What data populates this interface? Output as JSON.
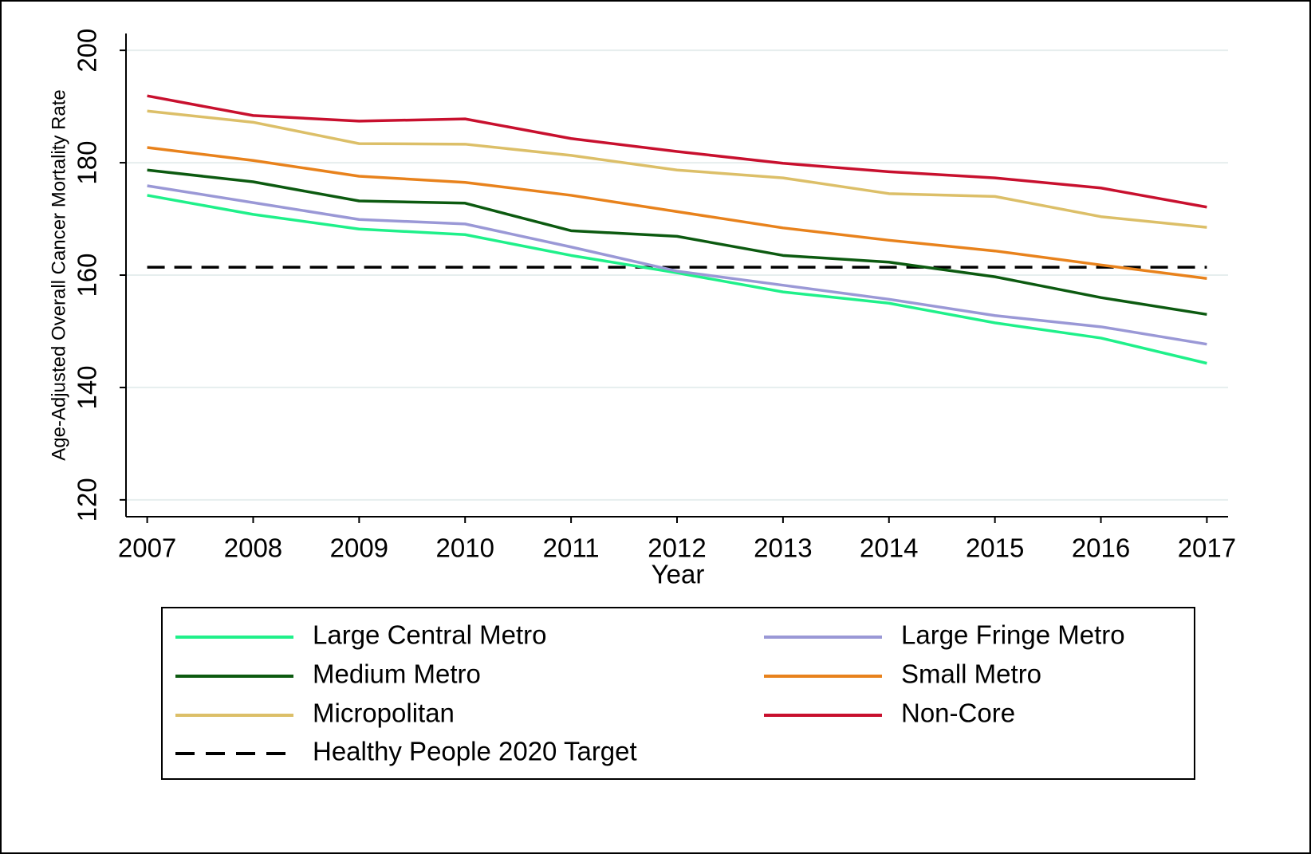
{
  "chart_data": {
    "type": "line",
    "x_label": "Year",
    "y_label": "Age-Adjusted Overall Cancer Mortality Rate",
    "x": [
      2007,
      2008,
      2009,
      2010,
      2011,
      2012,
      2013,
      2014,
      2015,
      2016,
      2017
    ],
    "xlim": [
      2006.8,
      2017.2
    ],
    "xticks": [
      2007,
      2008,
      2009,
      2010,
      2011,
      2012,
      2013,
      2014,
      2015,
      2016,
      2017
    ],
    "ylim": [
      117,
      203
    ],
    "yticks": [
      120,
      140,
      160,
      180,
      200
    ],
    "grid": true,
    "series": [
      {
        "name": "Large Central Metro",
        "color": "#1ff08a",
        "values": [
          174.2,
          170.8,
          168.2,
          167.2,
          163.5,
          160.4,
          157.0,
          155.0,
          151.5,
          148.8,
          144.3
        ]
      },
      {
        "name": "Large Fringe Metro",
        "color": "#9a98d6",
        "values": [
          175.9,
          172.9,
          169.9,
          169.1,
          165.0,
          160.7,
          158.2,
          155.7,
          152.8,
          150.8,
          147.7
        ]
      },
      {
        "name": "Medium Metro",
        "color": "#0c5a10",
        "values": [
          178.7,
          176.6,
          173.2,
          172.8,
          167.9,
          166.9,
          163.5,
          162.3,
          159.7,
          156.0,
          153.0
        ]
      },
      {
        "name": "Small Metro",
        "color": "#e8821c",
        "values": [
          182.7,
          180.4,
          177.6,
          176.5,
          174.2,
          171.3,
          168.4,
          166.2,
          164.3,
          161.8,
          159.4
        ]
      },
      {
        "name": "Micropolitan",
        "color": "#dcbf68",
        "values": [
          189.2,
          187.2,
          183.4,
          183.3,
          181.3,
          178.7,
          177.3,
          174.5,
          174.0,
          170.4,
          168.5
        ]
      },
      {
        "name": "Non-Core",
        "color": "#c8102e",
        "values": [
          191.9,
          188.4,
          187.4,
          187.8,
          184.3,
          182.0,
          179.9,
          178.4,
          177.3,
          175.5,
          172.1
        ]
      }
    ],
    "reference_line": {
      "name": "Healthy People 2020 Target",
      "value": 161.4,
      "color": "#000000",
      "dashed": true
    }
  }
}
